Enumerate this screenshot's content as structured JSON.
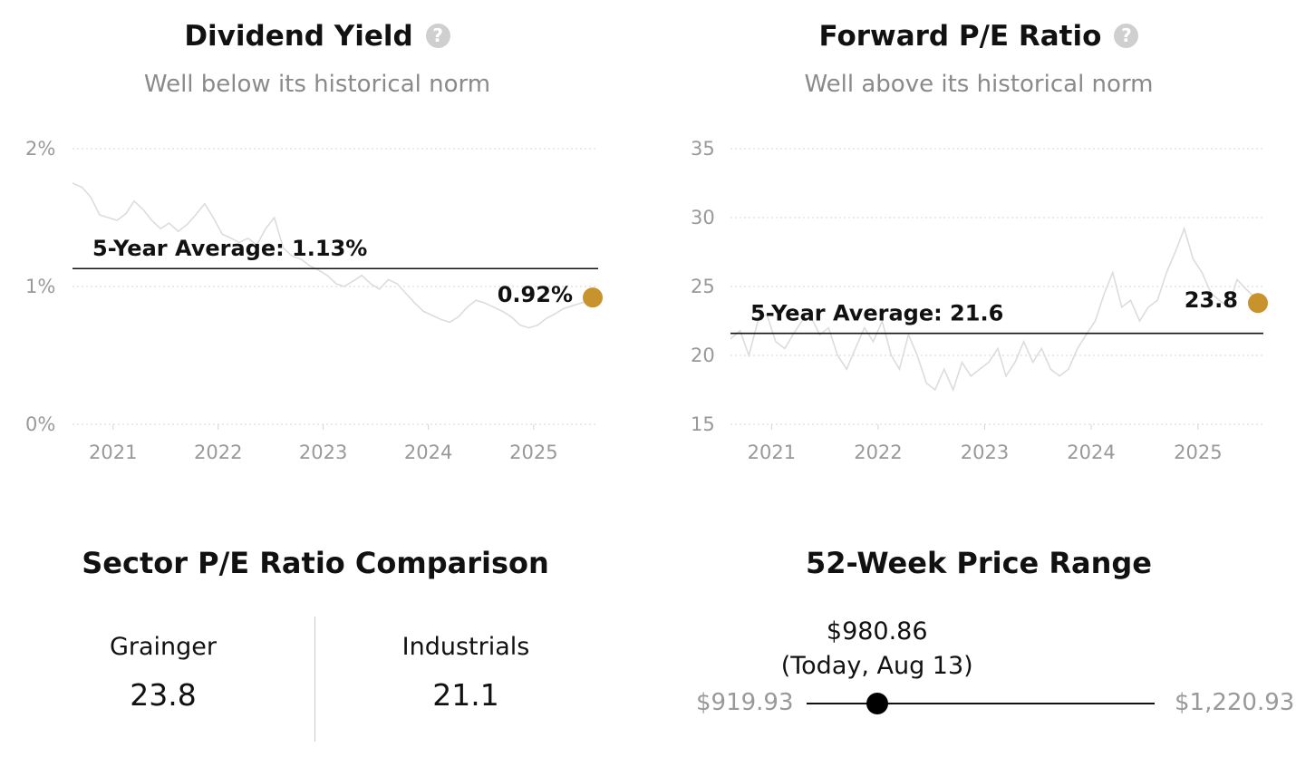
{
  "chart_data": [
    {
      "type": "line",
      "title": "Dividend Yield",
      "subtitle": "Well below its historical norm",
      "y_ticks": [
        "0%",
        "1%",
        "2%"
      ],
      "y_tick_values": [
        0,
        1,
        2
      ],
      "ylim": [
        0,
        2
      ],
      "x_ticks": [
        "2021",
        "2022",
        "2023",
        "2024",
        "2025"
      ],
      "x_tick_values": [
        "2021-01-01",
        "2022-01-01",
        "2023-01-01",
        "2024-01-01",
        "2025-01-01"
      ],
      "xlim": [
        "2020-08-13",
        "2025-08-13"
      ],
      "average": {
        "label": "5-Year Average: 1.13%",
        "value": 1.13
      },
      "current": {
        "label": "0.92%",
        "value": 0.92
      },
      "series_color": "#dcdcdc",
      "marker_color": "#c8922d",
      "grid": true,
      "points": [
        [
          "2020-08-13",
          1.75
        ],
        [
          "2020-09-15",
          1.72
        ],
        [
          "2020-10-15",
          1.65
        ],
        [
          "2020-11-15",
          1.52
        ],
        [
          "2020-12-15",
          1.5
        ],
        [
          "2021-01-15",
          1.48
        ],
        [
          "2021-02-15",
          1.53
        ],
        [
          "2021-03-15",
          1.62
        ],
        [
          "2021-04-15",
          1.56
        ],
        [
          "2021-05-15",
          1.48
        ],
        [
          "2021-06-15",
          1.42
        ],
        [
          "2021-07-15",
          1.46
        ],
        [
          "2021-08-15",
          1.4
        ],
        [
          "2021-09-15",
          1.45
        ],
        [
          "2021-10-15",
          1.52
        ],
        [
          "2021-11-15",
          1.6
        ],
        [
          "2021-12-15",
          1.5
        ],
        [
          "2022-01-15",
          1.38
        ],
        [
          "2022-02-15",
          1.35
        ],
        [
          "2022-03-15",
          1.32
        ],
        [
          "2022-04-15",
          1.35
        ],
        [
          "2022-05-15",
          1.3
        ],
        [
          "2022-06-15",
          1.42
        ],
        [
          "2022-07-15",
          1.5
        ],
        [
          "2022-08-15",
          1.28
        ],
        [
          "2022-09-15",
          1.22
        ],
        [
          "2022-10-15",
          1.2
        ],
        [
          "2022-11-15",
          1.15
        ],
        [
          "2022-12-15",
          1.12
        ],
        [
          "2023-01-15",
          1.08
        ],
        [
          "2023-02-15",
          1.02
        ],
        [
          "2023-03-15",
          1.0
        ],
        [
          "2023-04-15",
          1.04
        ],
        [
          "2023-05-15",
          1.08
        ],
        [
          "2023-06-15",
          1.02
        ],
        [
          "2023-07-15",
          0.98
        ],
        [
          "2023-08-15",
          1.05
        ],
        [
          "2023-09-15",
          1.02
        ],
        [
          "2023-10-15",
          0.95
        ],
        [
          "2023-11-15",
          0.88
        ],
        [
          "2023-12-15",
          0.82
        ],
        [
          "2024-01-15",
          0.79
        ],
        [
          "2024-02-15",
          0.76
        ],
        [
          "2024-03-15",
          0.74
        ],
        [
          "2024-04-15",
          0.78
        ],
        [
          "2024-05-15",
          0.85
        ],
        [
          "2024-06-15",
          0.9
        ],
        [
          "2024-07-15",
          0.88
        ],
        [
          "2024-08-15",
          0.85
        ],
        [
          "2024-09-15",
          0.82
        ],
        [
          "2024-10-15",
          0.78
        ],
        [
          "2024-11-15",
          0.72
        ],
        [
          "2024-12-15",
          0.7
        ],
        [
          "2025-01-15",
          0.72
        ],
        [
          "2025-02-15",
          0.77
        ],
        [
          "2025-03-15",
          0.8
        ],
        [
          "2025-04-15",
          0.84
        ],
        [
          "2025-05-15",
          0.86
        ],
        [
          "2025-06-15",
          0.88
        ],
        [
          "2025-07-15",
          0.9
        ],
        [
          "2025-08-13",
          0.92
        ]
      ]
    },
    {
      "type": "line",
      "title": "Forward P/E Ratio",
      "subtitle": "Well above its historical norm",
      "y_ticks": [
        "15",
        "20",
        "25",
        "30",
        "35"
      ],
      "y_tick_values": [
        15,
        20,
        25,
        30,
        35
      ],
      "ylim": [
        15,
        35
      ],
      "x_ticks": [
        "2021",
        "2022",
        "2023",
        "2024",
        "2025"
      ],
      "x_tick_values": [
        "2021-01-01",
        "2022-01-01",
        "2023-01-01",
        "2024-01-01",
        "2025-01-01"
      ],
      "xlim": [
        "2020-08-13",
        "2025-08-13"
      ],
      "average": {
        "label": "5-Year Average: 21.6",
        "value": 21.6
      },
      "current": {
        "label": "23.8",
        "value": 23.8
      },
      "series_color": "#dcdcdc",
      "marker_color": "#c8922d",
      "grid": true,
      "points": [
        [
          "2020-08-13",
          21.2
        ],
        [
          "2020-09-15",
          21.8
        ],
        [
          "2020-10-15",
          20.0
        ],
        [
          "2020-11-15",
          22.5
        ],
        [
          "2020-12-15",
          23.0
        ],
        [
          "2021-01-15",
          21.0
        ],
        [
          "2021-02-15",
          20.5
        ],
        [
          "2021-03-15",
          21.5
        ],
        [
          "2021-04-15",
          22.5
        ],
        [
          "2021-05-15",
          22.8
        ],
        [
          "2021-06-15",
          21.5
        ],
        [
          "2021-07-15",
          22.0
        ],
        [
          "2021-08-15",
          20.0
        ],
        [
          "2021-09-15",
          19.0
        ],
        [
          "2021-10-15",
          20.5
        ],
        [
          "2021-11-15",
          22.0
        ],
        [
          "2021-12-15",
          21.0
        ],
        [
          "2022-01-15",
          22.5
        ],
        [
          "2022-02-15",
          20.0
        ],
        [
          "2022-03-15",
          19.0
        ],
        [
          "2022-04-15",
          21.5
        ],
        [
          "2022-05-15",
          20.0
        ],
        [
          "2022-06-15",
          18.0
        ],
        [
          "2022-07-15",
          17.5
        ],
        [
          "2022-08-15",
          19.0
        ],
        [
          "2022-09-15",
          17.5
        ],
        [
          "2022-10-15",
          19.5
        ],
        [
          "2022-11-15",
          18.5
        ],
        [
          "2022-12-15",
          19.0
        ],
        [
          "2023-01-15",
          19.5
        ],
        [
          "2023-02-15",
          20.5
        ],
        [
          "2023-03-15",
          18.5
        ],
        [
          "2023-04-15",
          19.5
        ],
        [
          "2023-05-15",
          21.0
        ],
        [
          "2023-06-15",
          19.5
        ],
        [
          "2023-07-15",
          20.5
        ],
        [
          "2023-08-15",
          19.0
        ],
        [
          "2023-09-15",
          18.5
        ],
        [
          "2023-10-15",
          19.0
        ],
        [
          "2023-11-15",
          20.5
        ],
        [
          "2023-12-15",
          21.5
        ],
        [
          "2024-01-15",
          22.5
        ],
        [
          "2024-02-15",
          24.5
        ],
        [
          "2024-03-15",
          26.0
        ],
        [
          "2024-04-15",
          23.5
        ],
        [
          "2024-05-15",
          24.0
        ],
        [
          "2024-06-15",
          22.5
        ],
        [
          "2024-07-15",
          23.5
        ],
        [
          "2024-08-15",
          24.0
        ],
        [
          "2024-09-15",
          26.0
        ],
        [
          "2024-10-15",
          27.5
        ],
        [
          "2024-11-15",
          29.2
        ],
        [
          "2024-12-15",
          27.0
        ],
        [
          "2025-01-15",
          26.0
        ],
        [
          "2025-02-15",
          24.5
        ],
        [
          "2025-03-15",
          24.0
        ],
        [
          "2025-04-15",
          23.5
        ],
        [
          "2025-05-15",
          25.5
        ],
        [
          "2025-06-15",
          24.8
        ],
        [
          "2025-07-15",
          24.2
        ],
        [
          "2025-08-13",
          23.8
        ]
      ]
    }
  ],
  "sector": {
    "title": "Sector P/E Ratio Comparison",
    "items": [
      {
        "name": "Grainger",
        "value": "23.8"
      },
      {
        "name": "Industrials",
        "value": "21.1"
      }
    ]
  },
  "price_range": {
    "title": "52-Week Price Range",
    "current_price": "$980.86",
    "current_label": "(Today, Aug 13)",
    "low": "$919.93",
    "high": "$1,220.93",
    "low_value": 919.93,
    "high_value": 1220.93,
    "current_value": 980.86
  }
}
